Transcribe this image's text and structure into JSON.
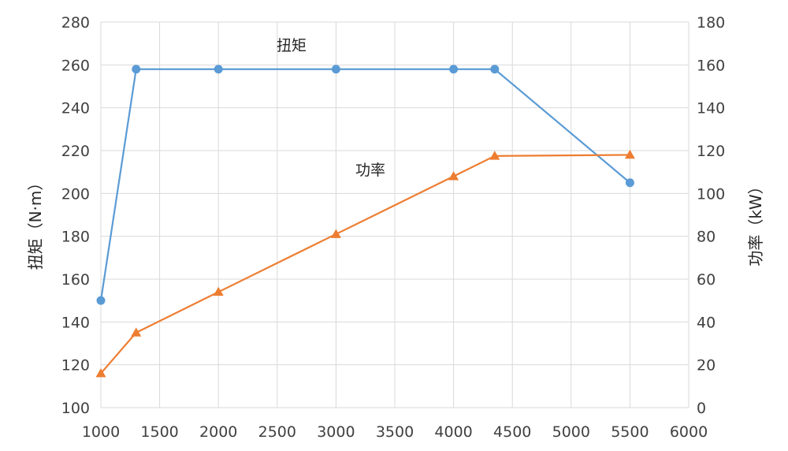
{
  "chart_data": {
    "type": "line",
    "x": [
      1000,
      1300,
      2000,
      3000,
      4000,
      4350,
      5500
    ],
    "xlim": [
      1000,
      6000
    ],
    "x_ticks": [
      "1000",
      "1500",
      "2000",
      "2500",
      "3000",
      "3500",
      "4000",
      "4500",
      "5000",
      "5500",
      "6000"
    ],
    "ylabel_left": "扭矩（N·m）",
    "ylabel_right": "功率（kW）",
    "ylim_left": [
      100,
      280
    ],
    "ylim_right": [
      0,
      180
    ],
    "y_ticks_left": [
      "100",
      "120",
      "140",
      "160",
      "180",
      "200",
      "220",
      "240",
      "260",
      "280"
    ],
    "y_ticks_right": [
      "0",
      "20",
      "40",
      "60",
      "80",
      "100",
      "120",
      "140",
      "160",
      "180"
    ],
    "grid": true,
    "series": [
      {
        "name": "扭矩",
        "axis": "left",
        "marker": "circle",
        "color": "#5b9bd5",
        "points": [
          [
            1000,
            150
          ],
          [
            1300,
            258
          ],
          [
            2000,
            258
          ],
          [
            3000,
            258
          ],
          [
            4000,
            258
          ],
          [
            4350,
            258
          ],
          [
            5500,
            205
          ]
        ]
      },
      {
        "name": "功率",
        "axis": "right",
        "marker": "triangle",
        "color": "#ed7d31",
        "points": [
          [
            1000,
            16
          ],
          [
            1300,
            35
          ],
          [
            2000,
            54
          ],
          [
            3000,
            81
          ],
          [
            4000,
            108
          ],
          [
            4350,
            117.5
          ],
          [
            5500,
            118
          ]
        ]
      }
    ]
  }
}
